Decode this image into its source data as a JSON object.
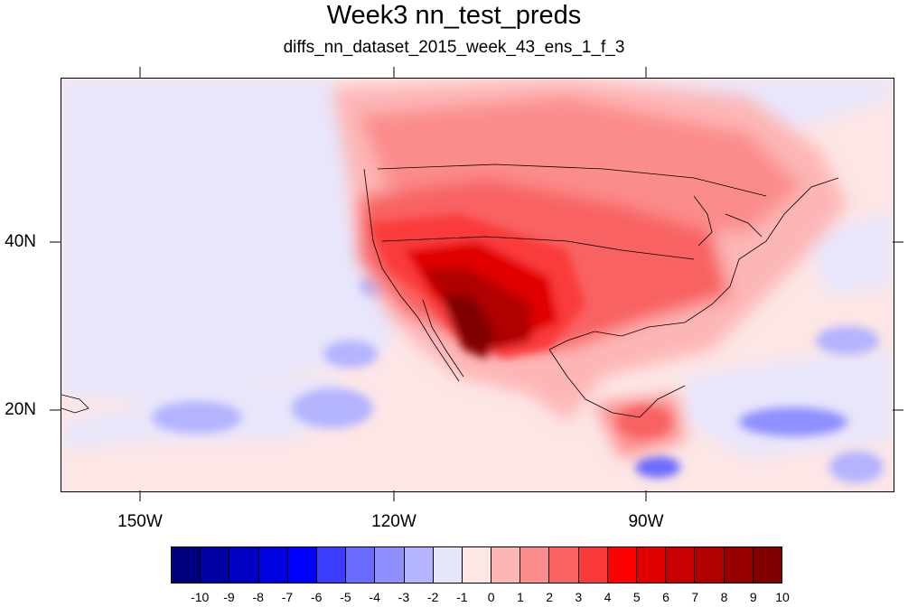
{
  "title": "Week3 nn_test_preds",
  "subtitle": "diffs_nn_dataset_2015_week_43_ens_1_f_3",
  "axes": {
    "lat_labels": [
      "40N",
      "20N"
    ],
    "lon_labels": [
      "150W",
      "120W",
      "90W"
    ]
  },
  "colorbar": {
    "colors": [
      "#00007f",
      "#0000a3",
      "#0000c4",
      "#0000e0",
      "#0000ff",
      "#3c3cff",
      "#6a6aff",
      "#8f8fff",
      "#b4b4ff",
      "#e6e6fb",
      "#fde6e6",
      "#fdb6b6",
      "#fb8c8c",
      "#f86262",
      "#fa3a3a",
      "#ff0000",
      "#e00000",
      "#c80000",
      "#b00000",
      "#980000",
      "#800000"
    ],
    "labels": [
      "-10",
      "-9",
      "-8",
      "-7",
      "-6",
      "-5",
      "-4",
      "-3",
      "-2",
      "-1",
      "0",
      "1",
      "2",
      "3",
      "4",
      "5",
      "6",
      "7",
      "8",
      "9",
      "10"
    ]
  },
  "chart_data": {
    "type": "heatmap",
    "title": "Week3 nn_test_preds",
    "subtitle": "diffs_nn_dataset_2015_week_43_ens_1_f_3",
    "region": "North America and adjacent Pacific / Gulf of Mexico",
    "lon_ticks": [
      "150W",
      "120W",
      "90W"
    ],
    "lat_ticks": [
      "40N",
      "20N"
    ],
    "colorbar_min": -10,
    "colorbar_max": 10,
    "colorbar_step": 1,
    "features": [
      {
        "area": "Southwestern US / Baja California / northwestern Mexico",
        "approx_value": 9
      },
      {
        "area": "Southern Plains / Texas",
        "approx_value": 7
      },
      {
        "area": "Central US / Great Plains",
        "approx_value": 4
      },
      {
        "area": "Canada",
        "approx_value": 3
      },
      {
        "area": "Eastern US",
        "approx_value": 2
      },
      {
        "area": "Eastern Pacific Ocean",
        "approx_value": -1
      },
      {
        "area": "Caribbean Sea patches",
        "approx_value": -3
      },
      {
        "area": "Central America / Yucatan",
        "approx_value": 5
      }
    ]
  }
}
